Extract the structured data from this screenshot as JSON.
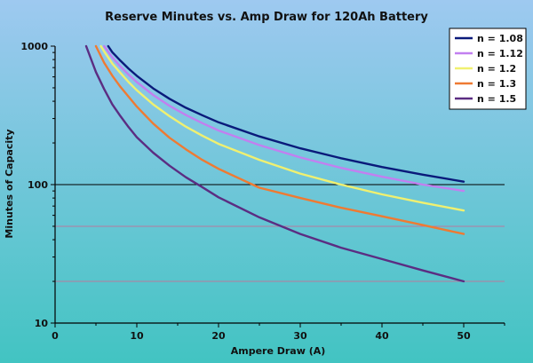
{
  "chart_data": {
    "type": "line",
    "title": "Reserve Minutes vs. Amp Draw for 120Ah Battery",
    "xlabel": "Ampere Draw (A)",
    "ylabel": "Minutes of Capacity",
    "xlim": [
      0,
      55
    ],
    "ylim": [
      10,
      1000
    ],
    "y_scale": "log",
    "x_ticks": [
      0,
      10,
      20,
      30,
      40,
      50
    ],
    "y_ticks": [
      10,
      100,
      1000
    ],
    "grid_lines": [
      {
        "y": 100,
        "color": "#000000"
      },
      {
        "y": 50,
        "color": "#b87a9e"
      },
      {
        "y": 20,
        "color": "#b87a9e"
      }
    ],
    "legend_position": "top-right",
    "colors": {
      "background_top": "#9ec9f0",
      "background_bottom": "#42c4c2"
    },
    "series": [
      {
        "name": "n = 1.08",
        "color": "#0a1a7a",
        "x": [
          6.5,
          7,
          8,
          9,
          10,
          12,
          14,
          16,
          18,
          20,
          25,
          30,
          35,
          40,
          45,
          50
        ],
        "y": [
          1000,
          905,
          785,
          687,
          611,
          495,
          417,
          359,
          317,
          282,
          223,
          183,
          155,
          134,
          118,
          105
        ]
      },
      {
        "name": "n = 1.12",
        "color": "#c27ff0",
        "x": [
          6,
          7,
          8,
          9,
          10,
          12,
          14,
          16,
          18,
          20,
          25,
          30,
          35,
          40,
          45,
          50
        ],
        "y": [
          1000,
          829,
          712,
          622,
          550,
          444,
          371,
          318,
          278,
          246,
          193,
          157,
          132,
          114,
          100,
          90
        ]
      },
      {
        "name": "n = 1.2",
        "color": "#f0f070",
        "x": [
          5.6,
          6,
          7,
          8,
          9,
          10,
          12,
          14,
          16,
          18,
          20,
          25,
          30,
          35,
          40,
          45,
          50
        ],
        "y": [
          1000,
          917,
          749,
          640,
          550,
          480,
          380,
          312,
          262,
          226,
          197,
          151,
          120,
          100,
          85,
          74,
          65
        ]
      },
      {
        "name": "n = 1.3",
        "color": "#ef7a32",
        "x": [
          5,
          6,
          7,
          8,
          9,
          10,
          12,
          14,
          16,
          18,
          20,
          25,
          30,
          35,
          40,
          45,
          50
        ],
        "y": [
          1000,
          760,
          612,
          508,
          431,
          366,
          276,
          218,
          180,
          151,
          130,
          95,
          80,
          68,
          59,
          51,
          44
        ]
      },
      {
        "name": "n = 1.5",
        "color": "#5b2d82",
        "x": [
          3.8,
          5,
          6,
          7,
          8,
          9,
          10,
          12,
          14,
          16,
          18,
          20,
          25,
          30,
          35,
          40,
          45,
          50
        ],
        "y": [
          1000,
          650,
          490,
          380,
          312,
          260,
          220,
          170,
          137,
          113,
          96,
          81,
          58,
          44,
          35,
          29,
          24,
          20
        ]
      }
    ]
  }
}
